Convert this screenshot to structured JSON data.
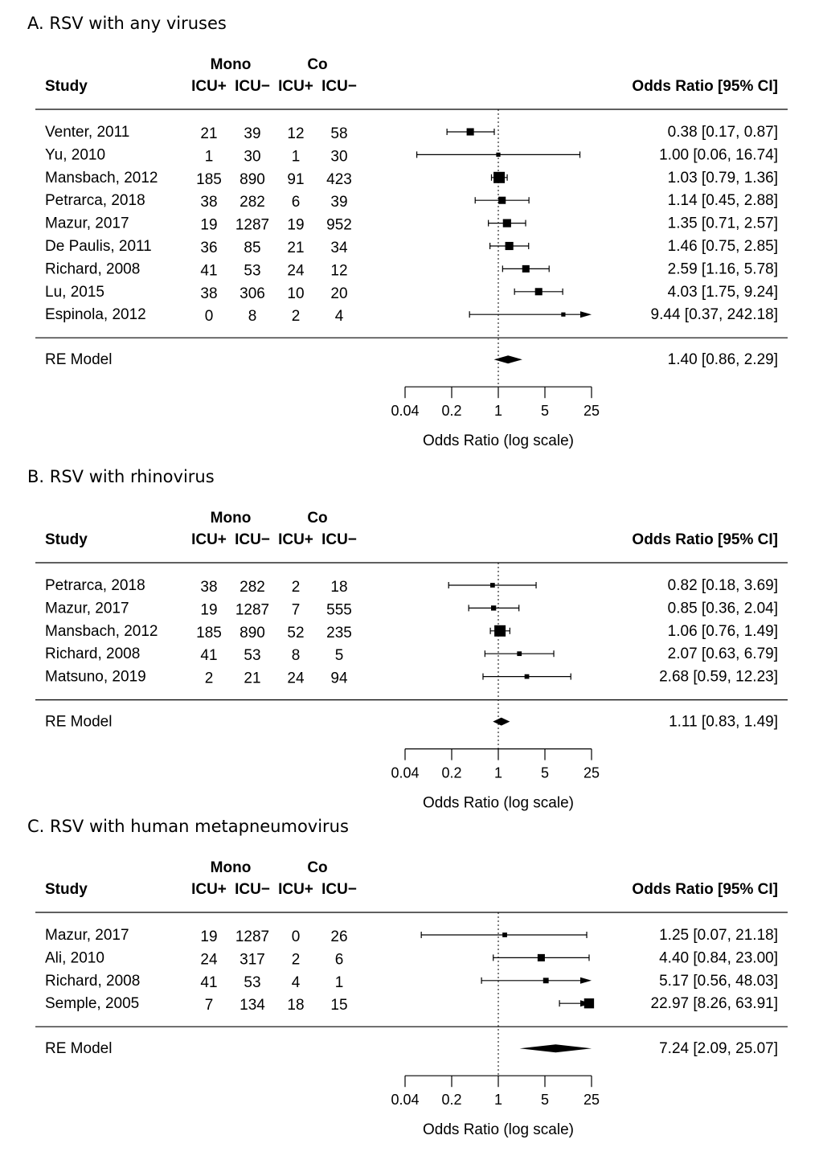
{
  "chart_data": [
    {
      "type": "forest",
      "title": "A. RSV with any viruses",
      "headers": {
        "study": "Study",
        "mono": "Mono",
        "co": "Co",
        "icu_pos": "ICU+",
        "icu_neg": "ICU−",
        "or": "Odds Ratio [95% CI]"
      },
      "studies": [
        {
          "name": "Venter, 2011",
          "mono_icu_pos": "21",
          "mono_icu_neg": "39",
          "co_icu_pos": "12",
          "co_icu_neg": "58",
          "or": 0.38,
          "lo": 0.17,
          "hi": 0.87,
          "label": "0.38 [0.17,   0.87]",
          "weight": 0.55
        },
        {
          "name": "Yu, 2010",
          "mono_icu_pos": "1",
          "mono_icu_neg": "30",
          "co_icu_pos": "1",
          "co_icu_neg": "30",
          "or": 1.0,
          "lo": 0.06,
          "hi": 16.74,
          "label": "1.00 [0.06,  16.74]",
          "weight": 0.2
        },
        {
          "name": "Mansbach, 2012",
          "mono_icu_pos": "185",
          "mono_icu_neg": "890",
          "co_icu_pos": "91",
          "co_icu_neg": "423",
          "or": 1.03,
          "lo": 0.79,
          "hi": 1.36,
          "label": "1.03 [0.79,   1.36]",
          "weight": 1.0
        },
        {
          "name": "Petrarca, 2018",
          "mono_icu_pos": "38",
          "mono_icu_neg": "282",
          "co_icu_pos": "6",
          "co_icu_neg": "39",
          "or": 1.14,
          "lo": 0.45,
          "hi": 2.88,
          "label": "1.14 [0.45,   2.88]",
          "weight": 0.55
        },
        {
          "name": "Mazur, 2017",
          "mono_icu_pos": "19",
          "mono_icu_neg": "1287",
          "co_icu_pos": "19",
          "co_icu_neg": "952",
          "or": 1.35,
          "lo": 0.71,
          "hi": 2.57,
          "label": "1.35 [0.71,   2.57]",
          "weight": 0.65
        },
        {
          "name": "De Paulis, 2011",
          "mono_icu_pos": "36",
          "mono_icu_neg": "85",
          "co_icu_pos": "21",
          "co_icu_neg": "34",
          "or": 1.46,
          "lo": 0.75,
          "hi": 2.85,
          "label": "1.46 [0.75,   2.85]",
          "weight": 0.65
        },
        {
          "name": "Richard, 2008",
          "mono_icu_pos": "41",
          "mono_icu_neg": "53",
          "co_icu_pos": "24",
          "co_icu_neg": "12",
          "or": 2.59,
          "lo": 1.16,
          "hi": 5.78,
          "label": "2.59 [1.16,   5.78]",
          "weight": 0.55
        },
        {
          "name": "Lu, 2015",
          "mono_icu_pos": "38",
          "mono_icu_neg": "306",
          "co_icu_pos": "10",
          "co_icu_neg": "20",
          "or": 4.03,
          "lo": 1.75,
          "hi": 9.24,
          "label": "4.03 [1.75,   9.24]",
          "weight": 0.55
        },
        {
          "name": "Espinola, 2012",
          "mono_icu_pos": "0",
          "mono_icu_neg": "8",
          "co_icu_pos": "2",
          "co_icu_neg": "4",
          "or": 9.44,
          "lo": 0.37,
          "hi": 242.18,
          "label": "9.44 [0.37, 242.18]",
          "weight": 0.2
        }
      ],
      "summary": {
        "name": "RE Model",
        "or": 1.4,
        "lo": 0.86,
        "hi": 2.29,
        "label": "1.40 [0.86,   2.29]"
      },
      "x_ticks": [
        "0.04",
        "0.2",
        "1",
        "5",
        "25"
      ],
      "xlabel": "Odds Ratio (log scale)"
    },
    {
      "type": "forest",
      "title": "B. RSV with rhinovirus",
      "headers": {
        "study": "Study",
        "mono": "Mono",
        "co": "Co",
        "icu_pos": "ICU+",
        "icu_neg": "ICU−",
        "or": "Odds Ratio [95% CI]"
      },
      "studies": [
        {
          "name": "Petrarca, 2018",
          "mono_icu_pos": "38",
          "mono_icu_neg": "282",
          "co_icu_pos": "2",
          "co_icu_neg": "18",
          "or": 0.82,
          "lo": 0.18,
          "hi": 3.69,
          "label": "0.82 [0.18,   3.69]",
          "weight": 0.25
        },
        {
          "name": "Mazur, 2017",
          "mono_icu_pos": "19",
          "mono_icu_neg": "1287",
          "co_icu_pos": "7",
          "co_icu_neg": "555",
          "or": 0.85,
          "lo": 0.36,
          "hi": 2.04,
          "label": "0.85 [0.36,   2.04]",
          "weight": 0.3
        },
        {
          "name": "Mansbach, 2012",
          "mono_icu_pos": "185",
          "mono_icu_neg": "890",
          "co_icu_pos": "52",
          "co_icu_neg": "235",
          "or": 1.06,
          "lo": 0.76,
          "hi": 1.49,
          "label": "1.06 [0.76,   1.49]",
          "weight": 1.0
        },
        {
          "name": "Richard, 2008",
          "mono_icu_pos": "41",
          "mono_icu_neg": "53",
          "co_icu_pos": "8",
          "co_icu_neg": "5",
          "or": 2.07,
          "lo": 0.63,
          "hi": 6.79,
          "label": "2.07 [0.63,   6.79]",
          "weight": 0.25
        },
        {
          "name": "Matsuno, 2019",
          "mono_icu_pos": "2",
          "mono_icu_neg": "21",
          "co_icu_pos": "24",
          "co_icu_neg": "94",
          "or": 2.68,
          "lo": 0.59,
          "hi": 12.23,
          "label": "2.68 [0.59,  12.23]",
          "weight": 0.25
        }
      ],
      "summary": {
        "name": "RE Model",
        "or": 1.11,
        "lo": 0.83,
        "hi": 1.49,
        "label": "1.11 [0.83,   1.49]"
      },
      "x_ticks": [
        "0.04",
        "0.2",
        "1",
        "5",
        "25"
      ],
      "xlabel": "Odds Ratio (log scale)"
    },
    {
      "type": "forest",
      "title": "C. RSV with human metapneumovirus",
      "headers": {
        "study": "Study",
        "mono": "Mono",
        "co": "Co",
        "icu_pos": "ICU+",
        "icu_neg": "ICU−",
        "or": "Odds Ratio [95% CI]"
      },
      "studies": [
        {
          "name": "Mazur, 2017",
          "mono_icu_pos": "19",
          "mono_icu_neg": "1287",
          "co_icu_pos": "0",
          "co_icu_neg": "26",
          "or": 1.25,
          "lo": 0.07,
          "hi": 21.18,
          "label": "1.25 [0.07,  21.18]",
          "weight": 0.25
        },
        {
          "name": "Ali, 2010",
          "mono_icu_pos": "24",
          "mono_icu_neg": "317",
          "co_icu_pos": "2",
          "co_icu_neg": "6",
          "or": 4.4,
          "lo": 0.84,
          "hi": 23.0,
          "label": "4.40 [0.84,  23.00]",
          "weight": 0.55
        },
        {
          "name": "Richard, 2008",
          "mono_icu_pos": "41",
          "mono_icu_neg": "53",
          "co_icu_pos": "4",
          "co_icu_neg": "1",
          "or": 5.17,
          "lo": 0.56,
          "hi": 48.03,
          "label": "5.17 [0.56,  48.03]",
          "weight": 0.35
        },
        {
          "name": "Semple, 2005",
          "mono_icu_pos": "7",
          "mono_icu_neg": "134",
          "co_icu_pos": "18",
          "co_icu_neg": "15",
          "or": 22.97,
          "lo": 8.26,
          "hi": 63.91,
          "label": "22.97 [8.26,  63.91]",
          "weight": 0.85
        }
      ],
      "summary": {
        "name": "RE Model",
        "or": 7.24,
        "lo": 2.09,
        "hi": 25.07,
        "label": "7.24 [2.09,  25.07]"
      },
      "x_ticks": [
        "0.04",
        "0.2",
        "1",
        "5",
        "25"
      ],
      "xlabel": "Odds Ratio (log scale)"
    }
  ]
}
